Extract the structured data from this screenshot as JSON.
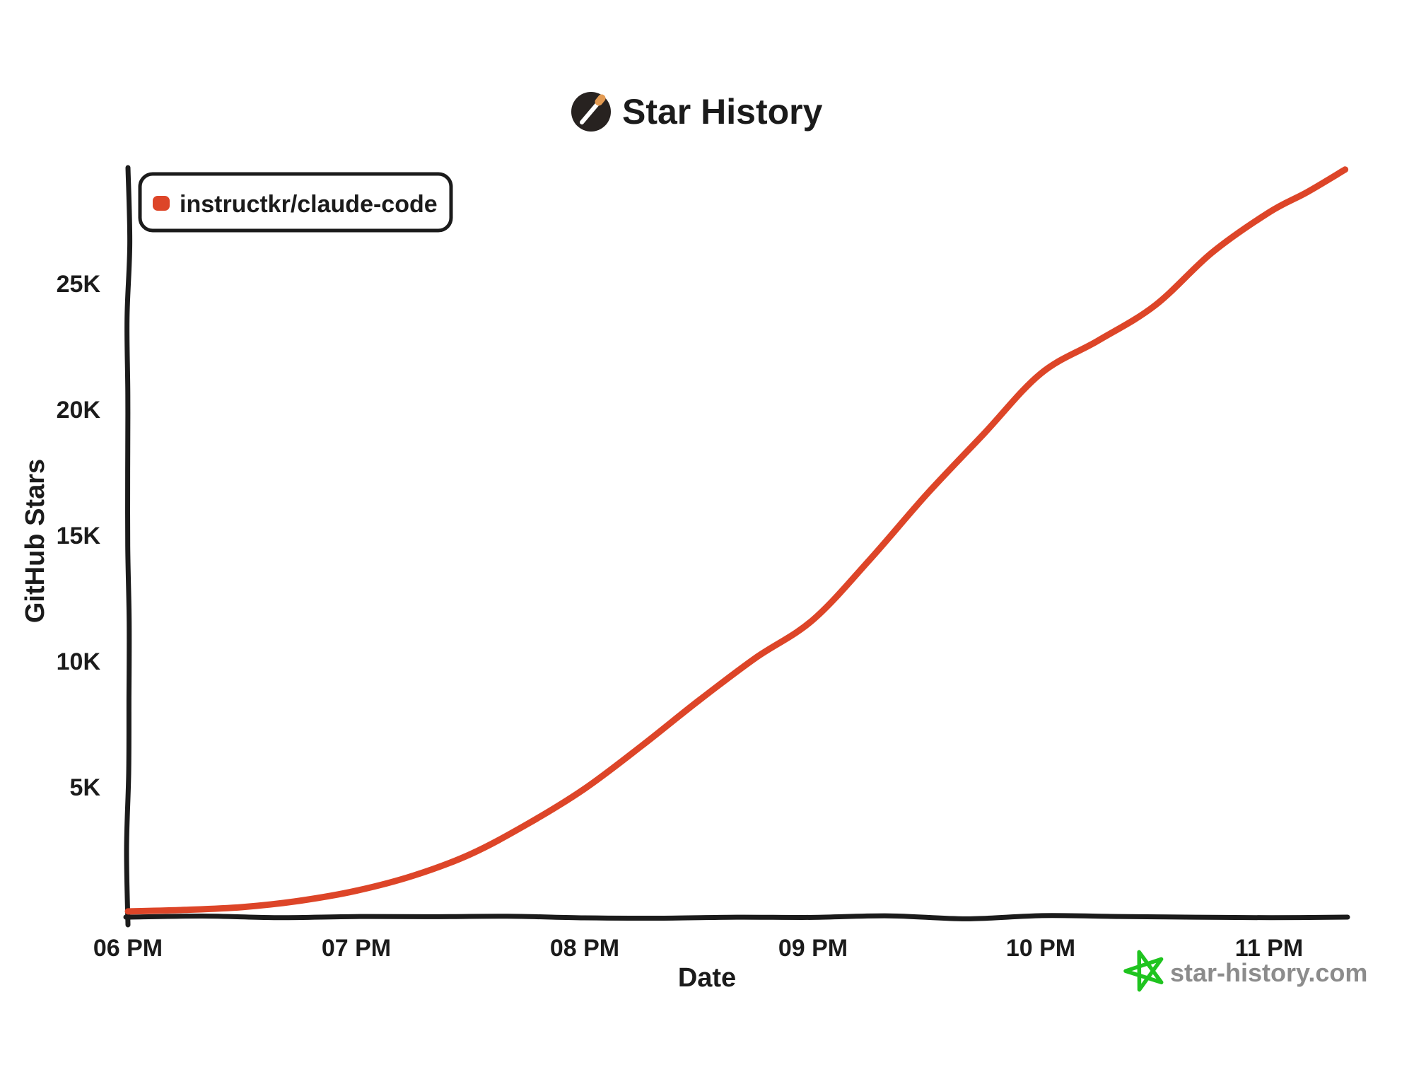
{
  "header": {
    "title": "Star History",
    "logo_icon": "shooting-star-icon",
    "logo_bg_color": "#272220",
    "logo_tip_color": "#e29a52"
  },
  "legend": {
    "series_label": "instructkr/claude-code",
    "swatch_color": "#dd4528"
  },
  "watermark": {
    "text": "star-history.com",
    "star_icon": "green-doodle-star-icon",
    "star_color": "#1fc41f",
    "text_color": "#8c8c8c"
  },
  "chart_data": {
    "type": "line",
    "title": "Star History",
    "xlabel": "Date",
    "ylabel": "GitHub Stars",
    "x_tick_labels": [
      "06 PM",
      "07 PM",
      "08 PM",
      "09 PM",
      "10 PM",
      "11 PM"
    ],
    "y_tick_labels": [
      "5K",
      "10K",
      "15K",
      "20K",
      "25K"
    ],
    "y_tick_values": [
      5000,
      10000,
      15000,
      20000,
      25000
    ],
    "ylim": [
      0,
      29600
    ],
    "x_range": [
      "18:00",
      "23:20"
    ],
    "grid": false,
    "legend_position": "top-left",
    "line_color": "#dd4528",
    "axis_color": "#1b1b1b",
    "series": [
      {
        "name": "instructkr/claude-code",
        "color": "#dd4528",
        "points": [
          {
            "time": "18:00",
            "stars": 30
          },
          {
            "time": "18:15",
            "stars": 90
          },
          {
            "time": "18:30",
            "stars": 200
          },
          {
            "time": "18:45",
            "stars": 450
          },
          {
            "time": "19:00",
            "stars": 850
          },
          {
            "time": "19:15",
            "stars": 1450
          },
          {
            "time": "19:30",
            "stars": 2300
          },
          {
            "time": "19:45",
            "stars": 3500
          },
          {
            "time": "20:00",
            "stars": 4900
          },
          {
            "time": "20:15",
            "stars": 6600
          },
          {
            "time": "20:30",
            "stars": 8400
          },
          {
            "time": "20:45",
            "stars": 10100
          },
          {
            "time": "21:00",
            "stars": 11600
          },
          {
            "time": "21:15",
            "stars": 14000
          },
          {
            "time": "21:30",
            "stars": 16600
          },
          {
            "time": "21:45",
            "stars": 19000
          },
          {
            "time": "22:00",
            "stars": 21400
          },
          {
            "time": "22:15",
            "stars": 22700
          },
          {
            "time": "22:30",
            "stars": 24100
          },
          {
            "time": "22:45",
            "stars": 26200
          },
          {
            "time": "23:00",
            "stars": 27800
          },
          {
            "time": "23:10",
            "stars": 28600
          },
          {
            "time": "23:20",
            "stars": 29500
          }
        ]
      }
    ]
  }
}
